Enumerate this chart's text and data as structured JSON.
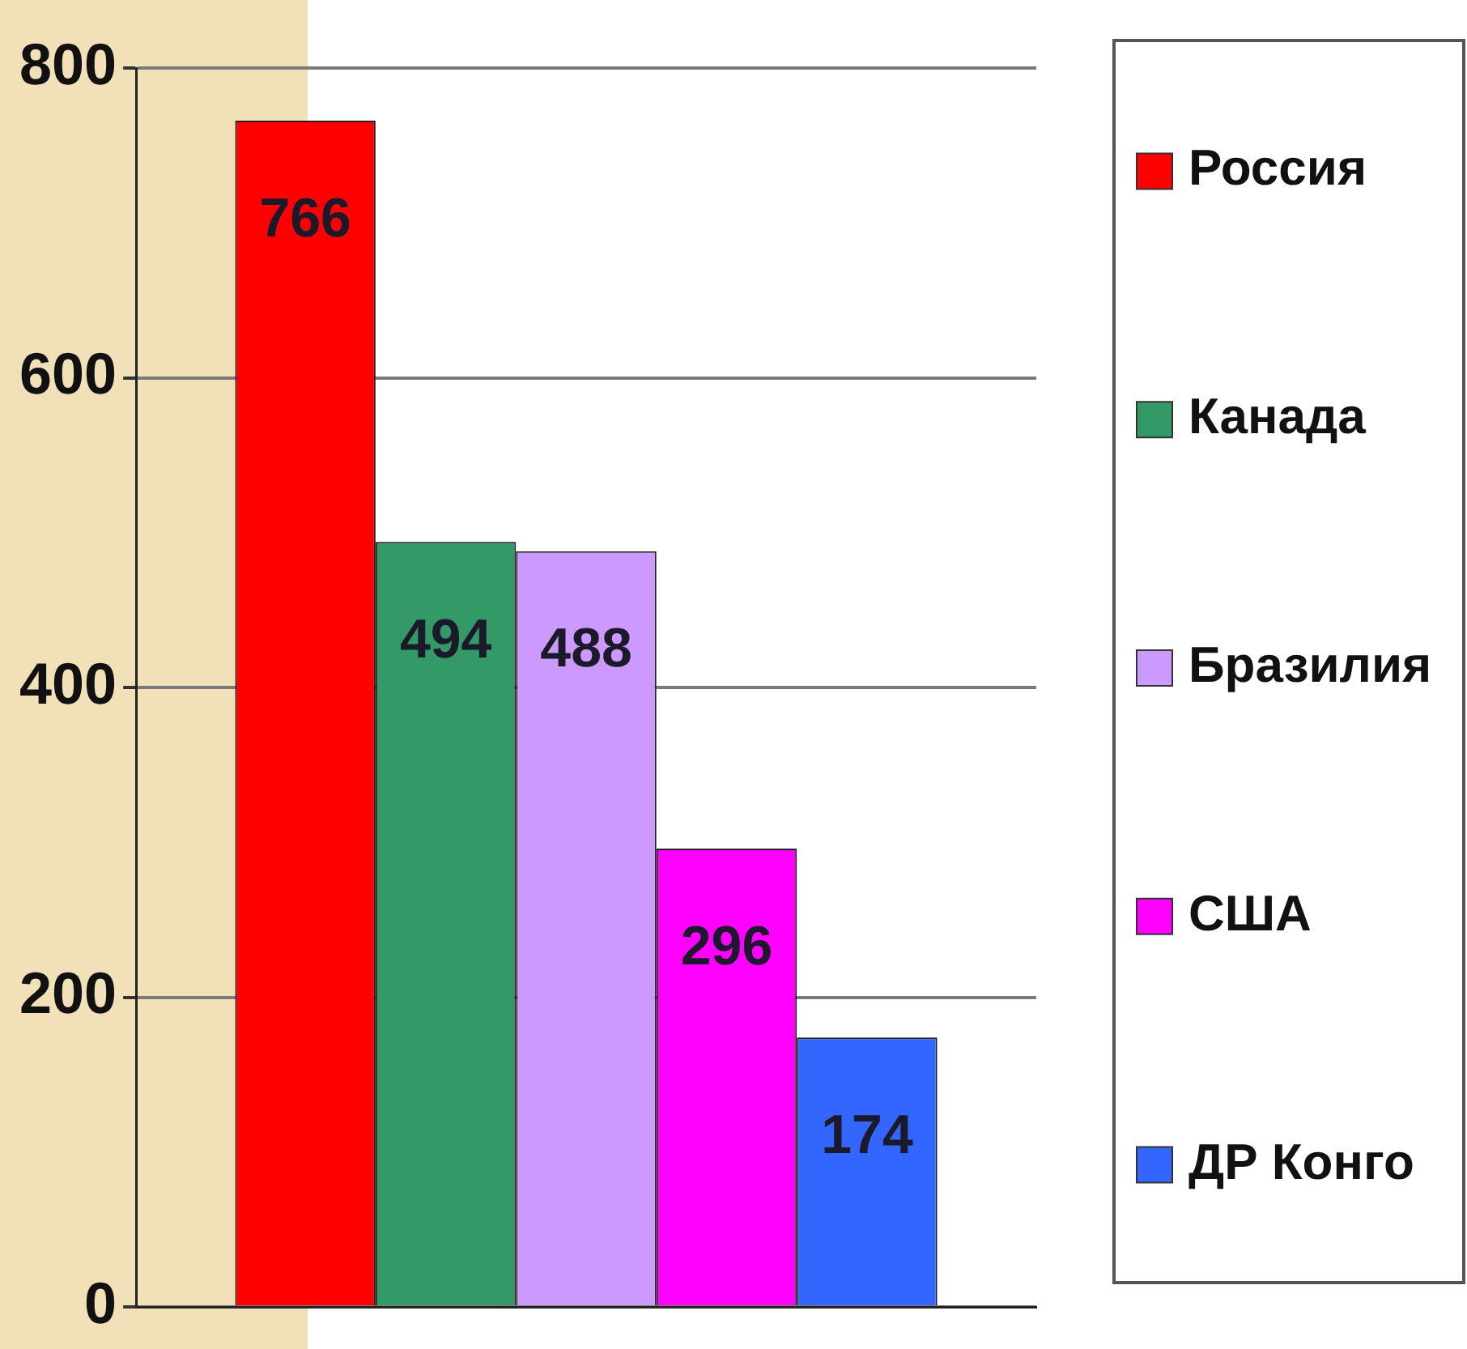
{
  "chart_data": {
    "type": "bar",
    "categories": [
      null
    ],
    "series": [
      {
        "name": "Россия",
        "color": "#ff0000",
        "values": [
          766
        ]
      },
      {
        "name": "Канада",
        "color": "#339966",
        "values": [
          494
        ]
      },
      {
        "name": "Бразилия",
        "color": "#cc99ff",
        "values": [
          488
        ]
      },
      {
        "name": "США",
        "color": "#ff00ff",
        "values": [
          296
        ]
      },
      {
        "name": "ДР Конго",
        "color": "#3366ff",
        "values": [
          174
        ]
      }
    ],
    "ylim": [
      0,
      800
    ],
    "yticks": [
      0,
      200,
      400,
      600,
      800
    ],
    "grid": "y",
    "legend": "right",
    "data_labels": true
  }
}
